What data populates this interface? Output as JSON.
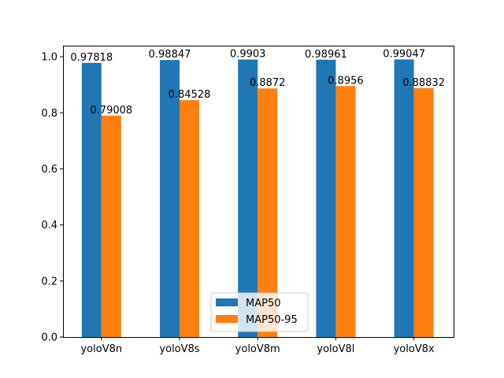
{
  "chart_data": {
    "type": "bar",
    "title": "",
    "xlabel": "",
    "ylabel": "",
    "categories": [
      "yoloV8n",
      "yoloV8s",
      "yoloV8m",
      "yoloV8l",
      "yoloV8x"
    ],
    "series": [
      {
        "name": "MAP50",
        "color": "#1f77b4",
        "values": [
          0.97818,
          0.98847,
          0.9903,
          0.98961,
          0.99047
        ],
        "labels": [
          "0.97818",
          "0.98847",
          "0.9903",
          "0.98961",
          "0.99047"
        ]
      },
      {
        "name": "MAP50-95",
        "color": "#ff7f0e",
        "values": [
          0.79008,
          0.84528,
          0.8872,
          0.8956,
          0.88832
        ],
        "labels": [
          "0.79008",
          "0.84528",
          "0.8872",
          "0.8956",
          "0.88832"
        ]
      }
    ],
    "ylim": [
      0,
      1.0396
    ],
    "yticks": [
      0.0,
      0.2,
      0.4,
      0.6,
      0.8,
      1.0
    ],
    "ytick_labels": [
      "0.0",
      "0.2",
      "0.4",
      "0.6",
      "0.8",
      "1.0"
    ],
    "grid": false,
    "legend_position": "bottom-center"
  }
}
